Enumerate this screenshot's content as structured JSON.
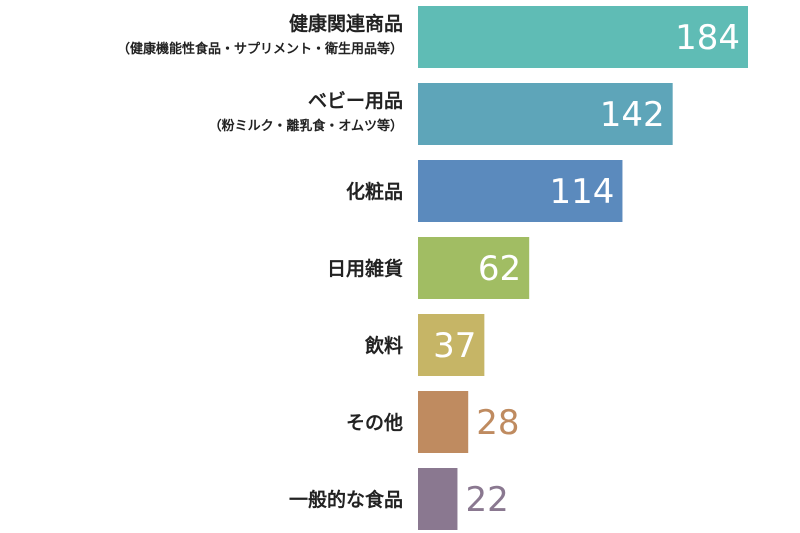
{
  "chart_data": {
    "type": "bar",
    "orientation": "horizontal",
    "title": "",
    "xlabel": "",
    "ylabel": "",
    "xlim": [
      0,
      184
    ],
    "grid": false,
    "legend": "none",
    "categories": [
      {
        "label": "健康関連商品",
        "sublabel": "（健康機能性食品・サプリメント・衛生用品等）",
        "value": 184,
        "color": "#5fbcb5",
        "value_inside": true
      },
      {
        "label": "ベビー用品",
        "sublabel": "（粉ミルク・離乳食・オムツ等）",
        "value": 142,
        "color": "#5ea5b9",
        "value_inside": true
      },
      {
        "label": "化粧品",
        "sublabel": "",
        "value": 114,
        "color": "#5b8abd",
        "value_inside": true
      },
      {
        "label": "日用雑貨",
        "sublabel": "",
        "value": 62,
        "color": "#a1bd63",
        "value_inside": true
      },
      {
        "label": "飲料",
        "sublabel": "",
        "value": 37,
        "color": "#c6b566",
        "value_inside": true
      },
      {
        "label": "その他",
        "sublabel": "",
        "value": 28,
        "color": "#bf8b60",
        "value_inside": false
      },
      {
        "label": "一般的な食品",
        "sublabel": "",
        "value": 22,
        "color": "#8a7890",
        "value_inside": false
      }
    ]
  }
}
